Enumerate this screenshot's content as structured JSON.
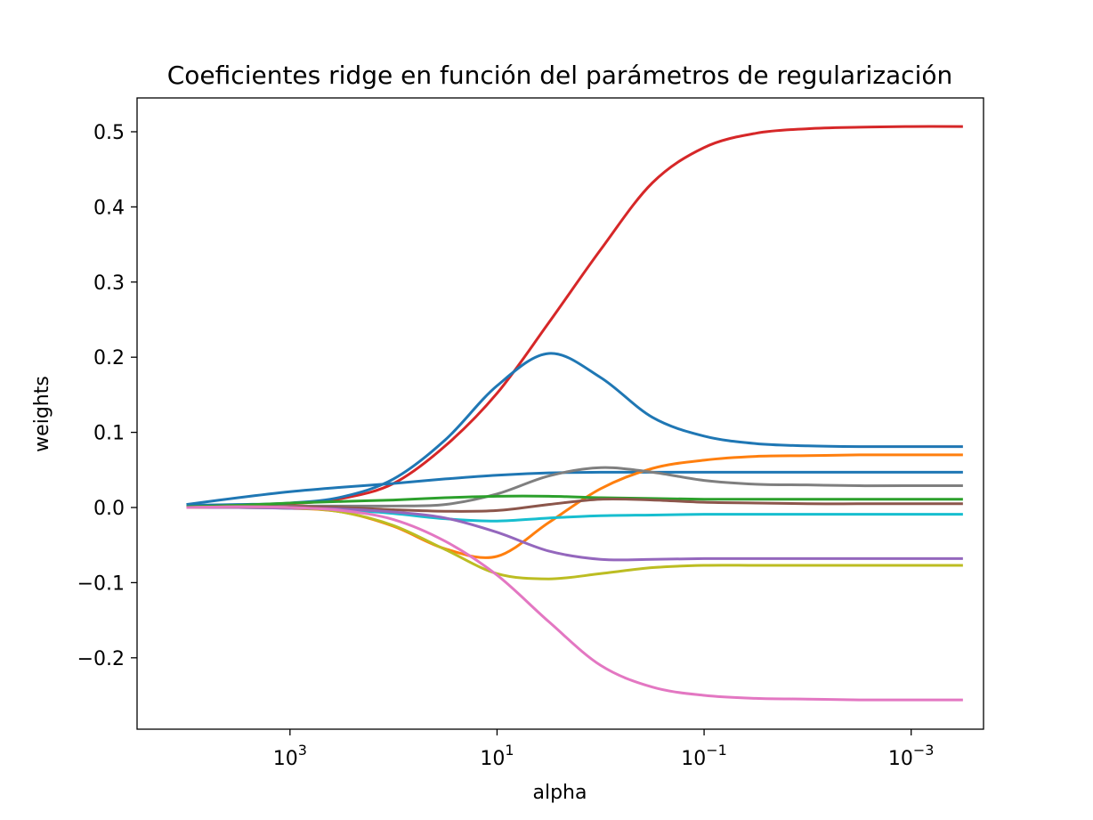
{
  "chart_data": {
    "type": "line",
    "title": "Coeficientes ridge en función del parámetros de regularización",
    "xlabel": "alpha",
    "ylabel": "weights",
    "xscale": "log",
    "x_reversed": true,
    "xlim": [
      30000,
      0.0002
    ],
    "ylim": [
      -0.295,
      0.545
    ],
    "xticks": [
      {
        "value": 1000,
        "base": "10",
        "exp": "3"
      },
      {
        "value": 10,
        "base": "10",
        "exp": "1"
      },
      {
        "value": 0.1,
        "base": "10",
        "exp": "−1"
      },
      {
        "value": 0.001,
        "base": "10",
        "exp": "−3"
      }
    ],
    "yticks": [
      {
        "value": 0.5,
        "label": "0.5"
      },
      {
        "value": 0.4,
        "label": "0.4"
      },
      {
        "value": 0.3,
        "label": "0.3"
      },
      {
        "value": 0.2,
        "label": "0.2"
      },
      {
        "value": 0.1,
        "label": "0.1"
      },
      {
        "value": 0.0,
        "label": "0.0"
      },
      {
        "value": -0.1,
        "label": "−0.1"
      },
      {
        "value": -0.2,
        "label": "−0.2"
      }
    ],
    "grid": false,
    "x": [
      10000,
      3162,
      1000,
      316.2,
      100,
      31.62,
      10,
      3.162,
      1,
      0.3162,
      0.1,
      0.03162,
      0.01,
      0.003162,
      0.001,
      0.0003162
    ],
    "series": [
      {
        "color": "#d62728",
        "values": [
          0.002,
          0.003,
          0.005,
          0.012,
          0.032,
          0.082,
          0.152,
          0.246,
          0.343,
          0.432,
          0.479,
          0.498,
          0.504,
          0.506,
          0.507,
          0.507
        ]
      },
      {
        "color": "#1f77b4",
        "values": [
          0.003,
          0.004,
          0.006,
          0.014,
          0.038,
          0.09,
          0.162,
          0.205,
          0.173,
          0.12,
          0.095,
          0.085,
          0.082,
          0.081,
          0.081,
          0.081
        ]
      },
      {
        "color": "#1f77b4",
        "values": [
          0.004,
          0.013,
          0.021,
          0.027,
          0.032,
          0.038,
          0.043,
          0.046,
          0.047,
          0.047,
          0.047,
          0.047,
          0.047,
          0.047,
          0.047,
          0.047
        ]
      },
      {
        "color": "#ff7f0e",
        "values": [
          0.0,
          0.0,
          -0.001,
          -0.006,
          -0.025,
          -0.055,
          -0.065,
          -0.02,
          0.025,
          0.052,
          0.063,
          0.068,
          0.069,
          0.07,
          0.07,
          0.07
        ]
      },
      {
        "color": "#7f7f7f",
        "values": [
          0.0,
          0.001,
          0.002,
          0.002,
          0.002,
          0.004,
          0.018,
          0.042,
          0.053,
          0.047,
          0.036,
          0.031,
          0.03,
          0.029,
          0.029,
          0.029
        ]
      },
      {
        "color": "#2ca02c",
        "values": [
          0.001,
          0.003,
          0.006,
          0.008,
          0.01,
          0.013,
          0.015,
          0.015,
          0.013,
          0.012,
          0.011,
          0.011,
          0.011,
          0.011,
          0.011,
          0.011
        ]
      },
      {
        "color": "#8c564b",
        "values": [
          0.0,
          0.001,
          0.001,
          0.0,
          -0.003,
          -0.005,
          -0.004,
          0.004,
          0.011,
          0.01,
          0.007,
          0.006,
          0.005,
          0.005,
          0.005,
          0.005
        ]
      },
      {
        "color": "#17becf",
        "values": [
          0.0,
          0.0,
          -0.001,
          -0.003,
          -0.008,
          -0.015,
          -0.018,
          -0.014,
          -0.011,
          -0.01,
          -0.009,
          -0.009,
          -0.009,
          -0.009,
          -0.009,
          -0.009
        ]
      },
      {
        "color": "#9467bd",
        "values": [
          0.0,
          0.0,
          -0.001,
          -0.002,
          -0.006,
          -0.014,
          -0.033,
          -0.058,
          -0.069,
          -0.069,
          -0.068,
          -0.068,
          -0.068,
          -0.068,
          -0.068,
          -0.068
        ]
      },
      {
        "color": "#bcbd22",
        "values": [
          0.0,
          0.001,
          0.0,
          -0.006,
          -0.024,
          -0.056,
          -0.088,
          -0.095,
          -0.088,
          -0.08,
          -0.077,
          -0.077,
          -0.077,
          -0.077,
          -0.077,
          -0.077
        ]
      },
      {
        "color": "#e377c2",
        "values": [
          0.0,
          0.001,
          0.0,
          -0.004,
          -0.016,
          -0.045,
          -0.09,
          -0.152,
          -0.21,
          -0.239,
          -0.25,
          -0.254,
          -0.255,
          -0.256,
          -0.256,
          -0.256
        ]
      }
    ]
  }
}
